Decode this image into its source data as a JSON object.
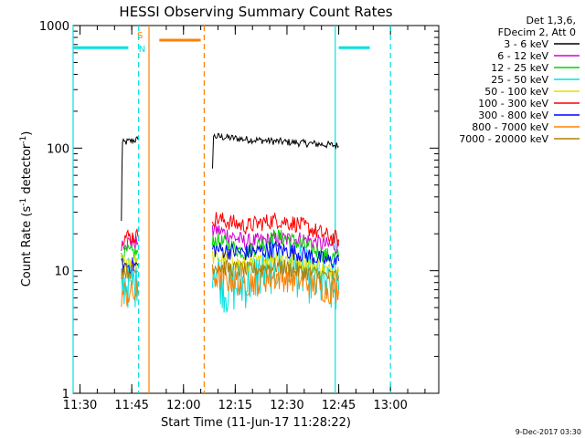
{
  "chart_data": {
    "type": "line",
    "title": "HESSI Observing Summary Count Rates",
    "xlabel": "Start Time (11-Jun-17 11:28:22)",
    "ylabel_main": "Count Rate (s",
    "ylabel_sup1": "-1",
    "ylabel_mid": " detector",
    "ylabel_sup2": "-1",
    "ylabel_end": ")",
    "yscale": "log",
    "ylim": [
      1,
      1000
    ],
    "xlim": [
      11.4667,
      13.2333
    ],
    "yticks": [
      {
        "value": 1,
        "label": "1"
      },
      {
        "value": 10,
        "label": "10"
      },
      {
        "value": 100,
        "label": "100"
      },
      {
        "value": 1000,
        "label": "1000"
      }
    ],
    "xticks": [
      {
        "value": 11.5,
        "label": "11:30"
      },
      {
        "value": 11.75,
        "label": "11:45"
      },
      {
        "value": 12.0,
        "label": "12:00"
      },
      {
        "value": 12.25,
        "label": "12:15"
      },
      {
        "value": 12.5,
        "label": "12:30"
      },
      {
        "value": 12.75,
        "label": "12:45"
      },
      {
        "value": 13.0,
        "label": "13:00"
      }
    ],
    "legend_header": [
      "Det 1,3,6,",
      "FDecim 2, Att 0"
    ],
    "legend_placement": "right",
    "series": [
      {
        "name": "3 - 6 keV",
        "color": "#000000",
        "segments": [
          [
            [
              11.7,
              25
            ],
            [
              11.705,
              110
            ],
            [
              11.75,
              115
            ],
            [
              11.78,
              118
            ]
          ],
          [
            [
              12.14,
              65
            ],
            [
              12.145,
              125
            ],
            [
              12.3,
              118
            ],
            [
              12.5,
              112
            ],
            [
              12.65,
              108
            ],
            [
              12.74,
              105
            ],
            [
              12.75,
              103
            ]
          ]
        ]
      },
      {
        "name": "6 - 12 keV",
        "color": "#d400d4",
        "segments": [
          [
            [
              11.7,
              17
            ],
            [
              11.78,
              17
            ]
          ],
          [
            [
              12.14,
              20
            ],
            [
              12.145,
              22
            ],
            [
              12.3,
              17
            ],
            [
              12.45,
              18
            ],
            [
              12.58,
              18
            ],
            [
              12.7,
              16
            ],
            [
              12.75,
              16
            ]
          ]
        ]
      },
      {
        "name": "12 - 25 keV",
        "color": "#00d400",
        "segments": [
          [
            [
              11.7,
              14
            ],
            [
              11.78,
              14
            ]
          ],
          [
            [
              12.14,
              16
            ],
            [
              12.145,
              18
            ],
            [
              12.3,
              14
            ],
            [
              12.45,
              19
            ],
            [
              12.55,
              17
            ],
            [
              12.7,
              13
            ],
            [
              12.75,
              13
            ]
          ]
        ]
      },
      {
        "name": "25 - 50 keV",
        "color": "#00e0e0",
        "segments": [
          [
            [
              11.7,
              8
            ],
            [
              11.78,
              8
            ]
          ],
          [
            [
              12.14,
              12
            ],
            [
              12.2,
              7
            ],
            [
              12.3,
              8
            ],
            [
              12.45,
              11
            ],
            [
              12.55,
              10
            ],
            [
              12.7,
              7
            ],
            [
              12.75,
              7
            ]
          ]
        ]
      },
      {
        "name": "50 - 100 keV",
        "color": "#e0e000",
        "segments": [
          [
            [
              11.7,
              12
            ],
            [
              11.78,
              12
            ]
          ],
          [
            [
              12.14,
              13
            ],
            [
              12.3,
              11
            ],
            [
              12.45,
              13
            ],
            [
              12.55,
              12
            ],
            [
              12.7,
              10
            ],
            [
              12.75,
              10
            ]
          ]
        ]
      },
      {
        "name": "100 - 300 keV",
        "color": "#ff0000",
        "segments": [
          [
            [
              11.7,
              19
            ],
            [
              11.78,
              19
            ]
          ],
          [
            [
              12.14,
              27
            ],
            [
              12.3,
              23
            ],
            [
              12.45,
              26
            ],
            [
              12.55,
              24
            ],
            [
              12.7,
              19
            ],
            [
              12.75,
              18
            ]
          ]
        ]
      },
      {
        "name": "300 - 800 keV",
        "color": "#0000ff",
        "segments": [
          [
            [
              11.7,
              11
            ],
            [
              11.78,
              11
            ]
          ],
          [
            [
              12.14,
              15
            ],
            [
              12.3,
              14
            ],
            [
              12.45,
              15
            ],
            [
              12.55,
              14
            ],
            [
              12.7,
              12
            ],
            [
              12.75,
              12
            ]
          ]
        ]
      },
      {
        "name": "800 - 7000 keV",
        "color": "#ff8000",
        "segments": [
          [
            [
              11.7,
              6.5
            ],
            [
              11.78,
              6.5
            ]
          ],
          [
            [
              12.14,
              9
            ],
            [
              12.3,
              8
            ],
            [
              12.45,
              9
            ],
            [
              12.55,
              8.5
            ],
            [
              12.7,
              7
            ],
            [
              12.75,
              7
            ]
          ]
        ]
      },
      {
        "name": "7000 - 20000 keV",
        "color": "#b08000",
        "segments": [
          [
            [
              11.7,
              10
            ],
            [
              11.78,
              10
            ]
          ],
          [
            [
              12.14,
              11
            ],
            [
              12.3,
              10
            ],
            [
              12.45,
              11
            ],
            [
              12.55,
              10
            ],
            [
              12.7,
              9
            ],
            [
              12.75,
              9
            ]
          ]
        ]
      }
    ],
    "saa_intervals": [
      {
        "color": "#00e0e0",
        "x0": 11.4667,
        "x1": 11.7333,
        "y": 660
      },
      {
        "color": "#ff8000",
        "x0": 11.8833,
        "x1": 12.0833,
        "y": 760
      },
      {
        "color": "#00e0e0",
        "x0": 12.75,
        "x1": 12.9,
        "y": 660
      }
    ],
    "vlines": [
      {
        "x": 11.4667,
        "color": "#00e0e0",
        "style": "solid"
      },
      {
        "x": 11.7833,
        "color": "#00e0e0",
        "style": "dashed"
      },
      {
        "x": 11.8333,
        "color": "#ff8000",
        "style": "solid"
      },
      {
        "x": 12.1,
        "color": "#ff8000",
        "style": "dashed"
      },
      {
        "x": 12.7333,
        "color": "#00e0e0",
        "style": "solid"
      },
      {
        "x": 13.0,
        "color": "#00e0e0",
        "style": "dashed"
      }
    ],
    "annotations": [
      {
        "text": "S",
        "color": "#ff8000",
        "x": 11.79,
        "y": 790
      },
      {
        "text": "N",
        "color": "#00e0e0",
        "x": 11.8,
        "y": 610
      }
    ],
    "footer": "9-Dec-2017 03:30"
  }
}
